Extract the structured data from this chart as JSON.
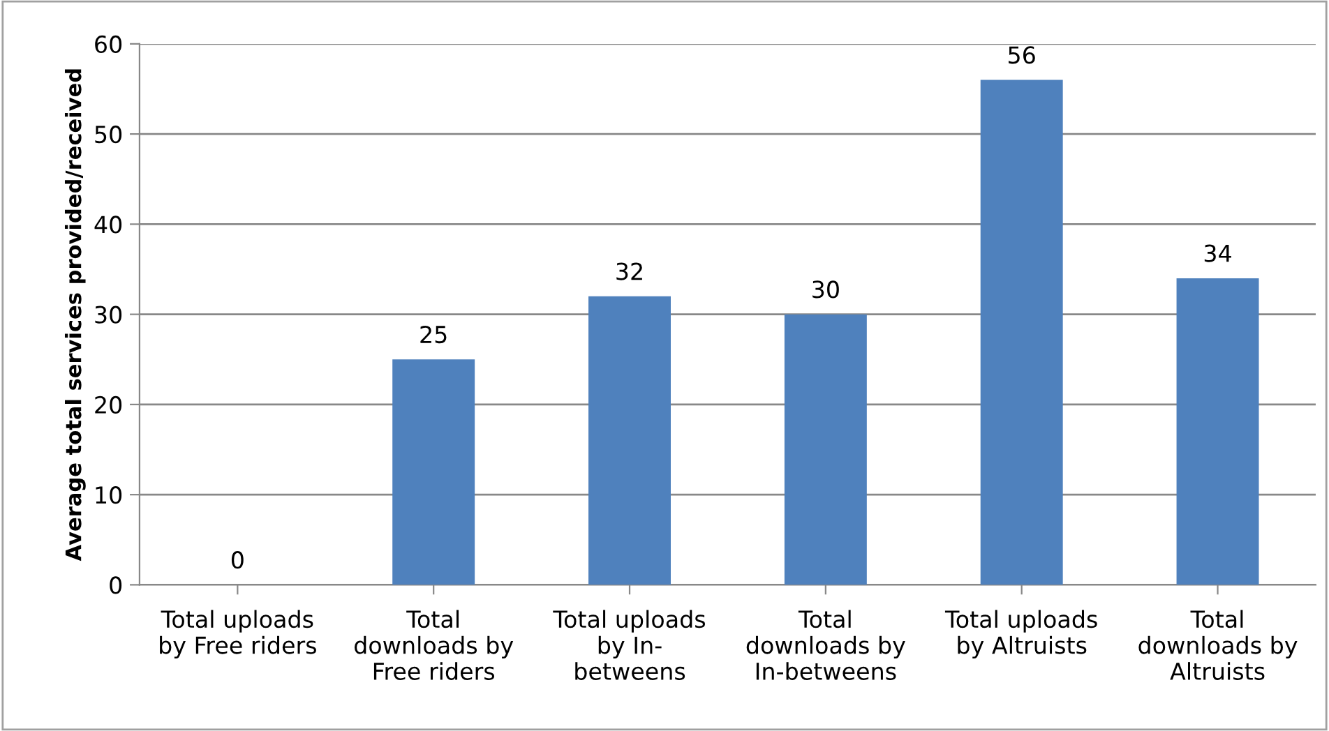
{
  "chart_data": {
    "type": "bar",
    "ylabel": "Average total services provided/received",
    "categories": [
      "Total uploads\nby Free riders",
      "Total\ndownloads by\nFree riders",
      "Total uploads\nby In-\nbetweens",
      "Total\ndownloads by\nIn-betweens",
      "Total uploads\nby Altruists",
      "Total\ndownloads by\nAltruists"
    ],
    "values": [
      0,
      25,
      32,
      30,
      56,
      34
    ],
    "color": "#4f81bd",
    "ylim": [
      0,
      60
    ],
    "yticks": [
      0,
      10,
      20,
      30,
      40,
      50,
      60
    ],
    "grid": "y",
    "data_labels": true,
    "legend": false
  }
}
